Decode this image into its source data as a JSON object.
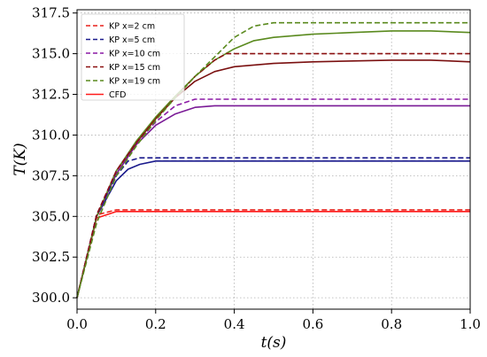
{
  "chart_data": {
    "type": "line",
    "title": "",
    "xlabel": "t(s)",
    "ylabel": "T(K)",
    "xlim": [
      0.0,
      1.0
    ],
    "ylim": [
      299.3,
      317.7
    ],
    "xticks": [
      0.0,
      0.2,
      0.4,
      0.6,
      0.8,
      1.0
    ],
    "xtick_labels": [
      "0.0",
      "0.2",
      "0.4",
      "0.6",
      "0.8",
      "1.0"
    ],
    "yticks": [
      300.0,
      302.5,
      305.0,
      307.5,
      310.0,
      312.5,
      315.0,
      317.5
    ],
    "ytick_labels": [
      "300.0",
      "302.5",
      "305.0",
      "307.5",
      "310.0",
      "312.5",
      "315.0",
      "317.5"
    ],
    "grid": true,
    "legend_position": "top-left",
    "series": [
      {
        "name": "KP x=2 cm",
        "color": "#e8211b",
        "dash": "dashed",
        "x": [
          0.0,
          0.05,
          0.1,
          0.2,
          0.4,
          0.6,
          0.8,
          1.0
        ],
        "y": [
          300.0,
          305.1,
          305.4,
          305.4,
          305.4,
          305.4,
          305.4,
          305.4
        ]
      },
      {
        "name": "KP x=5 cm",
        "color": "#1a1a8c",
        "dash": "dashed",
        "x": [
          0.0,
          0.05,
          0.1,
          0.13,
          0.16,
          0.2,
          0.4,
          0.6,
          0.8,
          1.0
        ],
        "y": [
          300.0,
          305.1,
          307.5,
          308.4,
          308.6,
          308.6,
          308.6,
          308.6,
          308.6,
          308.6
        ]
      },
      {
        "name": "KP x=10 cm",
        "color": "#8b1aa6",
        "dash": "dashed",
        "x": [
          0.0,
          0.05,
          0.1,
          0.15,
          0.2,
          0.25,
          0.3,
          0.4,
          0.6,
          0.8,
          1.0
        ],
        "y": [
          300.0,
          305.1,
          307.8,
          309.5,
          310.8,
          311.8,
          312.2,
          312.2,
          312.2,
          312.2,
          312.2
        ]
      },
      {
        "name": "KP x=15 cm",
        "color": "#8b1010",
        "dash": "dashed",
        "x": [
          0.0,
          0.05,
          0.1,
          0.15,
          0.2,
          0.25,
          0.3,
          0.35,
          0.38,
          0.4,
          0.6,
          0.8,
          1.0
        ],
        "y": [
          300.0,
          305.1,
          307.8,
          309.5,
          311.0,
          312.3,
          313.6,
          314.6,
          315.0,
          315.0,
          315.0,
          315.0,
          315.0
        ]
      },
      {
        "name": "KP x=19 cm",
        "color": "#5a8a1e",
        "dash": "dashed",
        "x": [
          0.0,
          0.05,
          0.1,
          0.15,
          0.2,
          0.25,
          0.3,
          0.35,
          0.4,
          0.45,
          0.5,
          0.6,
          0.8,
          1.0
        ],
        "y": [
          300.0,
          304.6,
          307.5,
          309.3,
          310.9,
          312.3,
          313.6,
          314.8,
          316.0,
          316.7,
          316.9,
          316.9,
          316.9,
          316.9
        ]
      },
      {
        "name": "CFD",
        "color": "#ff1a1a",
        "dash": "solid",
        "x": [
          0.0,
          0.05,
          0.1,
          0.2,
          0.4,
          0.6,
          0.8,
          1.0
        ],
        "y": [
          300.0,
          304.9,
          305.3,
          305.3,
          305.3,
          305.3,
          305.3,
          305.3
        ]
      },
      {
        "name": "",
        "color": "#1a1a8c",
        "dash": "solid",
        "x": [
          0.0,
          0.05,
          0.1,
          0.13,
          0.16,
          0.2,
          0.4,
          0.6,
          0.8,
          1.0
        ],
        "y": [
          300.0,
          305.0,
          307.2,
          307.9,
          308.2,
          308.4,
          308.4,
          308.4,
          308.4,
          308.4
        ]
      },
      {
        "name": "",
        "color": "#7a1a96",
        "dash": "solid",
        "x": [
          0.0,
          0.05,
          0.1,
          0.15,
          0.2,
          0.25,
          0.3,
          0.35,
          0.4,
          0.6,
          0.8,
          1.0
        ],
        "y": [
          300.0,
          305.0,
          307.6,
          309.4,
          310.6,
          311.3,
          311.7,
          311.8,
          311.8,
          311.8,
          311.8,
          311.8
        ]
      },
      {
        "name": "",
        "color": "#7a0f0f",
        "dash": "solid",
        "x": [
          0.0,
          0.05,
          0.1,
          0.15,
          0.2,
          0.25,
          0.3,
          0.35,
          0.4,
          0.5,
          0.6,
          0.8,
          0.9,
          1.0
        ],
        "y": [
          300.0,
          305.0,
          307.8,
          309.5,
          311.0,
          312.3,
          313.3,
          313.9,
          314.2,
          314.4,
          314.5,
          314.6,
          314.6,
          314.5
        ]
      },
      {
        "name": "",
        "color": "#5a8a1e",
        "dash": "solid",
        "x": [
          0.0,
          0.05,
          0.1,
          0.15,
          0.2,
          0.25,
          0.3,
          0.35,
          0.4,
          0.45,
          0.5,
          0.6,
          0.7,
          0.8,
          0.9,
          1.0
        ],
        "y": [
          300.0,
          305.0,
          307.8,
          309.6,
          311.1,
          312.4,
          313.6,
          314.6,
          315.3,
          315.8,
          316.0,
          316.2,
          316.3,
          316.4,
          316.4,
          316.3
        ]
      }
    ]
  }
}
